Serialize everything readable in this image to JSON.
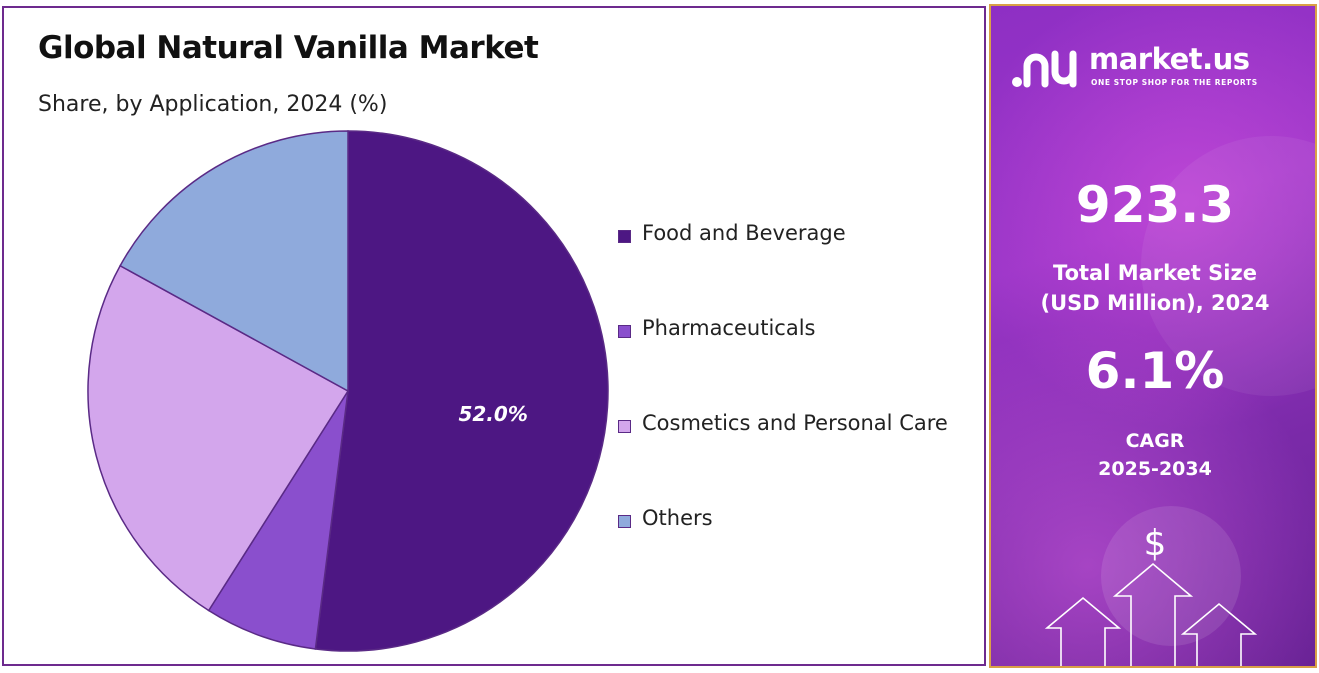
{
  "chart_data": {
    "type": "pie",
    "title": "Global Natural Vanilla Market",
    "subtitle": "Share, by Application, 2024 (%)",
    "categories": [
      "Food and Beverage",
      "Pharmaceuticals",
      "Cosmetics and Personal Care",
      "Others"
    ],
    "values": [
      52.0,
      7.0,
      24.0,
      17.0
    ],
    "colors": [
      "#4d1783",
      "#8a4fcd",
      "#d3a6ec",
      "#8faadc"
    ],
    "data_labels": [
      "52.0%",
      "",
      "",
      ""
    ],
    "legend_position": "right"
  },
  "side_panel": {
    "brand": "market.us",
    "tagline": "ONE STOP SHOP FOR THE REPORTS",
    "market_size_value": "923.3",
    "market_size_label_line1": "Total Market Size",
    "market_size_label_line2": "(USD Million), 2024",
    "cagr_value": "6.1%",
    "cagr_label_line1": "CAGR",
    "cagr_label_line2": "2025-2034",
    "currency_symbol": "$",
    "background_color": "#8e2fc4",
    "border_color": "#d9a047"
  }
}
